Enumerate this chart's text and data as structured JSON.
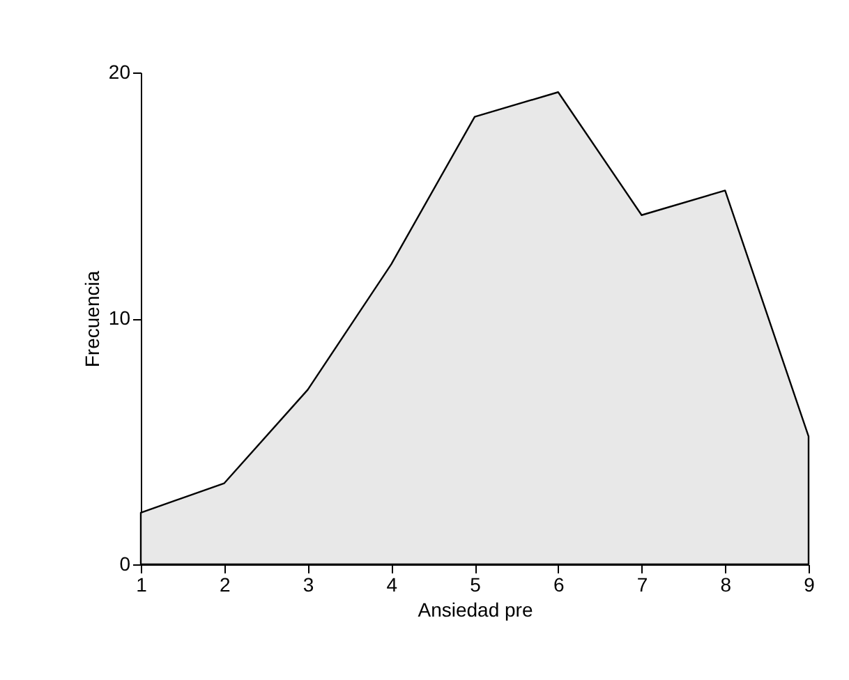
{
  "chart_data": {
    "type": "area",
    "xlabel": "Ansiedad pre",
    "ylabel": "Frecuencia",
    "x": [
      1,
      2,
      3,
      4,
      5,
      6,
      7,
      8,
      9
    ],
    "series": [
      {
        "color": "#e8e8e8",
        "values": [
          2.1,
          3.3,
          7.1,
          12.2,
          18.2,
          19.2,
          14.2,
          15.2,
          5.2
        ]
      }
    ],
    "xlim": [
      1,
      9
    ],
    "xticks": [
      1,
      2,
      3,
      4,
      5,
      6,
      7,
      8,
      9
    ],
    "ylim": [
      0,
      20
    ],
    "yticks": [
      0,
      10,
      20
    ],
    "grid": false
  }
}
